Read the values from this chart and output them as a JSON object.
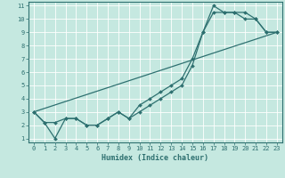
{
  "xlabel": "Humidex (Indice chaleur)",
  "xlim": [
    -0.5,
    23.5
  ],
  "ylim": [
    0.7,
    11.3
  ],
  "xticks": [
    0,
    1,
    2,
    3,
    4,
    5,
    6,
    7,
    8,
    9,
    10,
    11,
    12,
    13,
    14,
    15,
    16,
    17,
    18,
    19,
    20,
    21,
    22,
    23
  ],
  "yticks": [
    1,
    2,
    3,
    4,
    5,
    6,
    7,
    8,
    9,
    10,
    11
  ],
  "bg_color": "#c5e8e0",
  "line_color": "#2e7070",
  "grid_color": "#ffffff",
  "series1_x": [
    0,
    1,
    2,
    3,
    4,
    5,
    6,
    7,
    8,
    9,
    10,
    11,
    12,
    13,
    14,
    15,
    16,
    17,
    18,
    19,
    20,
    21,
    22,
    23
  ],
  "series1_y": [
    3.0,
    2.2,
    2.2,
    2.5,
    2.5,
    2.0,
    2.0,
    2.5,
    3.0,
    2.5,
    3.0,
    3.5,
    4.0,
    4.5,
    5.0,
    6.5,
    9.0,
    11.0,
    10.5,
    10.5,
    10.0,
    10.0,
    9.0,
    9.0
  ],
  "series2_x": [
    0,
    1,
    2,
    3,
    4,
    5,
    6,
    7,
    8,
    9,
    10,
    11,
    12,
    13,
    14,
    15,
    16,
    17,
    18,
    19,
    20,
    21,
    22,
    23
  ],
  "series2_y": [
    3.0,
    2.2,
    1.0,
    2.5,
    2.5,
    2.0,
    2.0,
    2.5,
    3.0,
    2.5,
    3.5,
    4.0,
    4.5,
    5.0,
    5.5,
    7.0,
    9.0,
    10.5,
    10.5,
    10.5,
    10.5,
    10.0,
    9.0,
    9.0
  ],
  "series3_x": [
    0,
    23
  ],
  "series3_y": [
    3.0,
    9.0
  ],
  "markersize": 2.0,
  "linewidth": 0.9
}
